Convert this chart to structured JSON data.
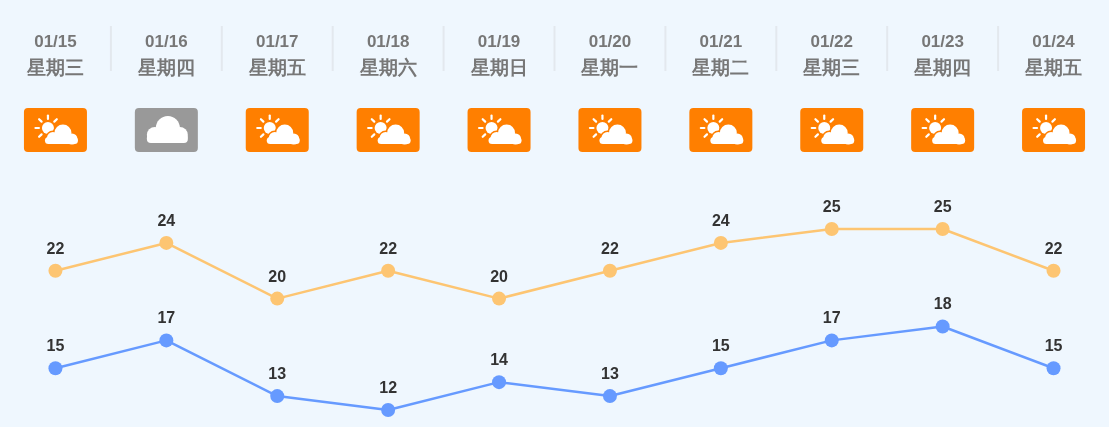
{
  "chart_data": {
    "type": "line",
    "categories": [
      "01/15\n星期三",
      "01/16\n星期四",
      "01/17\n星期五",
      "01/18\n星期六",
      "01/19\n星期日",
      "01/20\n星期一",
      "01/21\n星期二",
      "01/22\n星期三",
      "01/23\n星期四",
      "01/24\n星期五"
    ],
    "series": [
      {
        "color": "#fdc572",
        "values": [
          22,
          24,
          20,
          22,
          20,
          22,
          24,
          25,
          25,
          22
        ]
      },
      {
        "color": "#669aff",
        "values": [
          15,
          17,
          13,
          12,
          14,
          13,
          15,
          17,
          18,
          15
        ]
      }
    ],
    "marker": "circle",
    "line_style": "solid",
    "data_labels": true
  }
}
